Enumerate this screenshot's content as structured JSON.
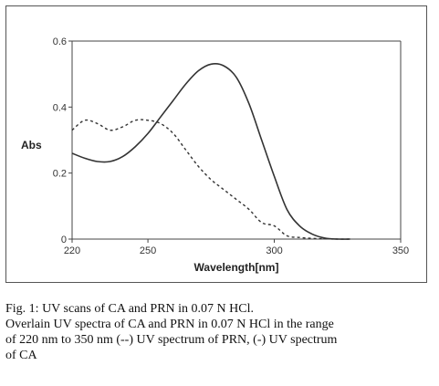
{
  "chart_data": {
    "type": "line",
    "xlabel": "Wavelength[nm]",
    "ylabel": "Abs",
    "xlim": [
      220,
      350
    ],
    "ylim": [
      0,
      0.6
    ],
    "x_ticks": [
      220,
      250,
      300,
      350
    ],
    "y_ticks": [
      0,
      0.2,
      0.4,
      0.6
    ],
    "grid": false,
    "series": [
      {
        "style": "dashed",
        "color": "#333333",
        "x": [
          220,
          225,
          230,
          235,
          240,
          245,
          250,
          255,
          260,
          265,
          270,
          275,
          280,
          285,
          290,
          295,
          300,
          305,
          310,
          315,
          320,
          325,
          330
        ],
        "y": [
          0.33,
          0.36,
          0.35,
          0.33,
          0.34,
          0.36,
          0.36,
          0.35,
          0.32,
          0.27,
          0.22,
          0.18,
          0.15,
          0.12,
          0.09,
          0.05,
          0.04,
          0.01,
          0.005,
          0.002,
          0.001,
          0.0,
          0.0
        ]
      },
      {
        "style": "solid",
        "color": "#333333",
        "x": [
          220,
          225,
          230,
          235,
          240,
          245,
          250,
          255,
          260,
          265,
          270,
          275,
          280,
          285,
          290,
          295,
          300,
          305,
          310,
          315,
          320,
          325,
          330
        ],
        "y": [
          0.26,
          0.245,
          0.235,
          0.235,
          0.25,
          0.28,
          0.32,
          0.37,
          0.42,
          0.47,
          0.51,
          0.53,
          0.525,
          0.49,
          0.41,
          0.3,
          0.19,
          0.09,
          0.04,
          0.015,
          0.003,
          0.0,
          0.0
        ]
      }
    ]
  },
  "caption": {
    "line1": "Fig. 1: UV scans of CA and PRN in 0.07 N HCl.",
    "line2": "Overlain UV spectra of CA and PRN in 0.07 N HCl in the range",
    "line3": "of 220 nm to 350 nm (--) UV spectrum of PRN, (-) UV spectrum",
    "line4": "of CA"
  }
}
